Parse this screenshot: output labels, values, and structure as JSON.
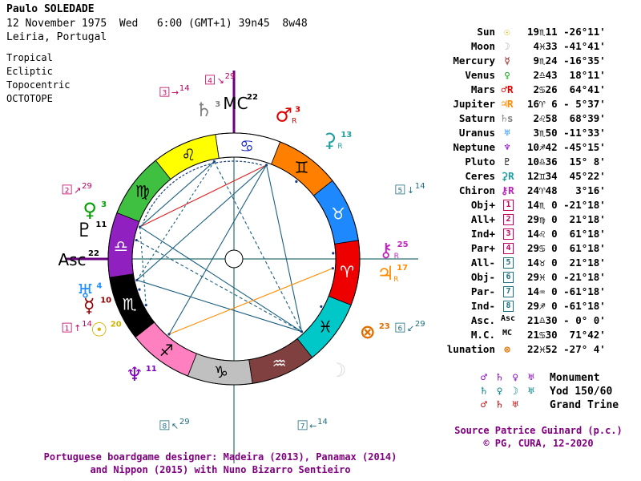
{
  "header": {
    "name": "Paulo SOLEDADE",
    "date_line": "12 November 1975  Wed   6:00 (GMT+1) 39n45  8w48",
    "place": "Leiria, Portugal"
  },
  "options": [
    "Tropical",
    "Ecliptic",
    "Topocentric",
    "OCTOTOPE"
  ],
  "table": [
    {
      "name": "Sun",
      "glyph": "☉",
      "color": "#d4b000",
      "pos": "19♏11 -26°11'"
    },
    {
      "name": "Moon",
      "glyph": "☽",
      "color": "#b0b0b0",
      "pos": " 4♓33 -41°41'"
    },
    {
      "name": "Mercury",
      "glyph": "☿",
      "color": "#8b0000",
      "pos": " 9♏24 -16°35'"
    },
    {
      "name": "Venus",
      "glyph": "♀",
      "color": "#00a000",
      "pos": " 2♎43  18°11'"
    },
    {
      "name": "Mars",
      "glyph": "♂R",
      "color": "#e00000",
      "pos": " 2♋26  64°41'"
    },
    {
      "name": "Jupiter",
      "glyph": "♃R",
      "color": "#ff8c00",
      "pos": "16♈ 6 - 5°37'"
    },
    {
      "name": "Saturn",
      "glyph": "♄s",
      "color": "#808080",
      "pos": " 2♌58  68°39'"
    },
    {
      "name": "Uranus",
      "glyph": "♅",
      "color": "#1e90ff",
      "pos": " 3♏50 -11°33'"
    },
    {
      "name": "Neptune",
      "glyph": "♆",
      "color": "#8000c0",
      "pos": "10♐42 -45°15'"
    },
    {
      "name": "Pluto",
      "glyph": "♇",
      "color": "#000000",
      "pos": "10♎36  15° 8'"
    },
    {
      "name": "Ceres",
      "glyph": "⚳R",
      "color": "#20a0a0",
      "pos": "12♊34  45°22'"
    },
    {
      "name": "Chiron",
      "glyph": "⚷R",
      "color": "#c020c0",
      "pos": "24♈48   3°16'"
    },
    {
      "name": "Obj+",
      "glyph": "1",
      "color": "#c00060",
      "pos": "14♏ 0 -21°18'"
    },
    {
      "name": "All+",
      "glyph": "2",
      "color": "#c00060",
      "pos": "29♍ 0  21°18'"
    },
    {
      "name": "Ind+",
      "glyph": "3",
      "color": "#c00060",
      "pos": "14♌ 0  61°18'"
    },
    {
      "name": "Par+",
      "glyph": "4",
      "color": "#c00060",
      "pos": "29♋ 0  61°18'"
    },
    {
      "name": "All-",
      "glyph": "5",
      "color": "#207080",
      "pos": "14♉ 0  21°18'"
    },
    {
      "name": "Obj-",
      "glyph": "6",
      "color": "#207080",
      "pos": "29♓ 0 -21°18'"
    },
    {
      "name": "Par-",
      "glyph": "7",
      "color": "#207080",
      "pos": "14♒ 0 -61°18'"
    },
    {
      "name": "Ind-",
      "glyph": "8",
      "color": "#207080",
      "pos": "29♐ 0 -61°18'"
    },
    {
      "name": "Asc.",
      "glyph": "Asc",
      "color": "#000000",
      "pos": "21♎30 - 0° 0'"
    },
    {
      "name": "M.C.",
      "glyph": "MC",
      "color": "#000000",
      "pos": "21♋30  71°42'"
    },
    {
      "name": "lunation",
      "glyph": "⊗",
      "color": "#e07000",
      "pos": "22♓52 -27° 4'"
    }
  ],
  "aspects": [
    {
      "glyphs": "♂ ♄ ♀ ♅",
      "label": "Monument"
    },
    {
      "glyphs": "♄ ♀ ☽ ♅",
      "label": "Yod 150/60"
    },
    {
      "glyphs": "♂ ♄ ♅",
      "label": "Grand Trine"
    }
  ],
  "source": "Source Patrice Guinard (p.c.)",
  "copyright": "© PG, CURA, 12-2020",
  "caption_line1": "Portuguese boardgame designer: Madeira (2013), Panamax (2014)",
  "caption_line2": "and Nippon (2015) with Nuno Bizarro Sentieiro",
  "wheel": {
    "zodiac": [
      {
        "sign": "♈",
        "color": "#ee0000"
      },
      {
        "sign": "♉",
        "color": "#1e88ff"
      },
      {
        "sign": "♊",
        "color": "#ff8000"
      },
      {
        "sign": "♋",
        "color": "#ffffff"
      },
      {
        "sign": "♌",
        "color": "#ffff00"
      },
      {
        "sign": "♍",
        "color": "#40c040"
      },
      {
        "sign": "♎",
        "color": "#9020c0"
      },
      {
        "sign": "♏",
        "color": "#000000"
      },
      {
        "sign": "♐",
        "color": "#ff80c0"
      },
      {
        "sign": "♑",
        "color": "#c0c0c0"
      },
      {
        "sign": "♒",
        "color": "#804040"
      },
      {
        "sign": "♓",
        "color": "#00c8c8"
      }
    ],
    "asc_longitude": 201.5,
    "mc_longitude": 111.5,
    "planets": [
      {
        "glyph": "♂",
        "label": "3",
        "lon": 92.4,
        "color": "#e00000",
        "retro": "R"
      },
      {
        "glyph": "♄",
        "label": "3",
        "lon": 122.97,
        "color": "#808080",
        "retro": ""
      },
      {
        "glyph": "♀",
        "label": "3",
        "lon": 182.7,
        "color": "#00a000",
        "retro": ""
      },
      {
        "glyph": "♇",
        "label": "11",
        "lon": 190.6,
        "color": "#000000",
        "retro": ""
      },
      {
        "glyph": "♅",
        "label": "4",
        "lon": 213.8,
        "color": "#1e90ff",
        "retro": ""
      },
      {
        "glyph": "☿",
        "label": "10",
        "lon": 219.4,
        "color": "#8b0000",
        "retro": ""
      },
      {
        "glyph": "☉",
        "label": "20",
        "lon": 229.2,
        "color": "#d4b000",
        "retro": ""
      },
      {
        "glyph": "♆",
        "label": "11",
        "lon": 250.7,
        "color": "#8000c0",
        "retro": ""
      },
      {
        "glyph": "☽",
        "label": "",
        "lon": 334.5,
        "color": "#d8d8d8",
        "retro": ""
      },
      {
        "glyph": "♃",
        "label": "17",
        "lon": 16.1,
        "color": "#ff8c00",
        "retro": "R"
      },
      {
        "glyph": "⚷",
        "label": "25",
        "lon": 24.8,
        "color": "#c020c0",
        "retro": "R"
      },
      {
        "glyph": "⚳",
        "label": "13",
        "lon": 72.6,
        "color": "#20a0a0",
        "retro": "R"
      },
      {
        "glyph": "⊗",
        "label": "23",
        "lon": 352.9,
        "color": "#e07000",
        "retro": ""
      }
    ],
    "points": [
      {
        "num": "1",
        "label": "14",
        "lon": 224,
        "color": "#c00060",
        "arrow": "↑"
      },
      {
        "num": "2",
        "label": "29",
        "lon": 179,
        "color": "#c00060",
        "arrow": "↗"
      },
      {
        "num": "3",
        "label": "14",
        "lon": 134,
        "color": "#c00060",
        "arrow": "→"
      },
      {
        "num": "4",
        "label": "29",
        "lon": 119,
        "color": "#c00060",
        "arrow": "↘"
      },
      {
        "num": "5",
        "label": "14",
        "lon": 44,
        "color": "#207080",
        "arrow": "↓"
      },
      {
        "num": "6",
        "label": "29",
        "lon": 359,
        "color": "#207080",
        "arrow": "↙"
      },
      {
        "num": "7",
        "label": "14",
        "lon": 314,
        "color": "#207080",
        "arrow": "←"
      },
      {
        "num": "8",
        "label": "29",
        "lon": 269,
        "color": "#207080",
        "arrow": "↖"
      }
    ],
    "aspect_lines": [
      {
        "a": 92.4,
        "b": 182.7,
        "color": "#e02020",
        "dash": ""
      },
      {
        "a": 122.97,
        "b": 182.7,
        "color": "#1a5f80",
        "dash": ""
      },
      {
        "a": 92.4,
        "b": 213.8,
        "color": "#1a5f80",
        "dash": ""
      },
      {
        "a": 92.4,
        "b": 334.5,
        "color": "#1a5f80",
        "dash": ""
      },
      {
        "a": 122.97,
        "b": 334.5,
        "color": "#1a5f80",
        "dash": "4,3"
      },
      {
        "a": 182.7,
        "b": 334.5,
        "color": "#1a5f80",
        "dash": ""
      },
      {
        "a": 213.8,
        "b": 334.5,
        "color": "#1a5f80",
        "dash": ""
      },
      {
        "a": 190.6,
        "b": 334.5,
        "color": "#1a5f80",
        "dash": "4,3"
      },
      {
        "a": 250.7,
        "b": 16.1,
        "color": "#ff8c00",
        "dash": ""
      },
      {
        "a": 92.4,
        "b": 250.7,
        "color": "#1a5f80",
        "dash": ""
      },
      {
        "a": 182.7,
        "b": 229.2,
        "color": "#1a5f80",
        "dash": "3,3"
      },
      {
        "a": 213.8,
        "b": 122.97,
        "color": "#1a5f80",
        "dash": "3,3"
      }
    ]
  }
}
